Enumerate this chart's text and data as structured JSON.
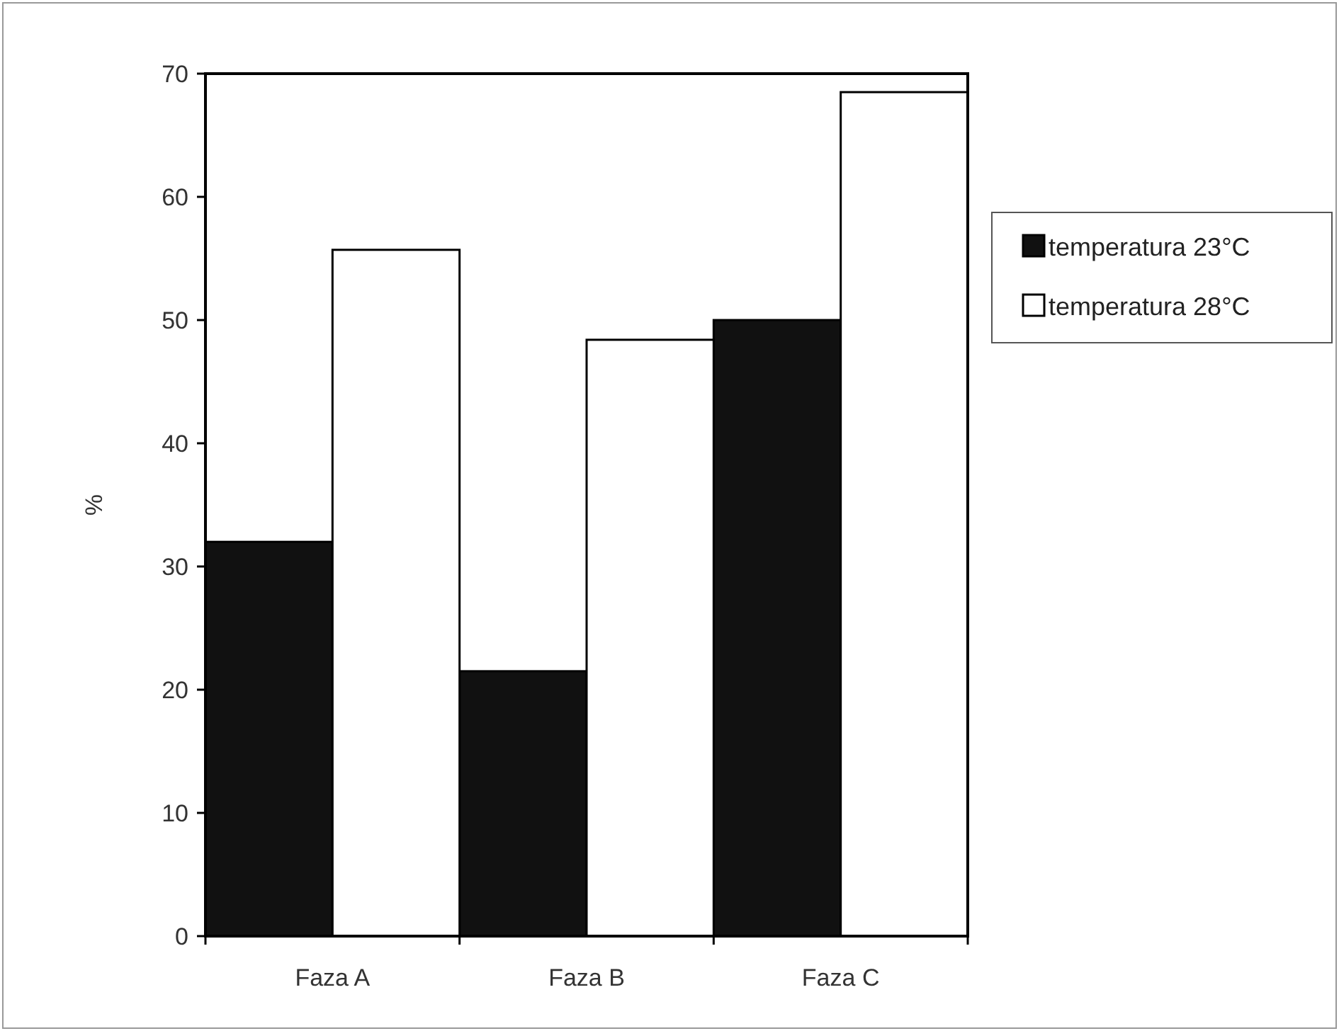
{
  "chart_data": {
    "type": "bar",
    "ylabel": "%",
    "categories": [
      "Faza A",
      "Faza B",
      "Faza C"
    ],
    "series": [
      {
        "name": "temperatura 23°C",
        "color": "#111111",
        "values": [
          32,
          21.5,
          50
        ]
      },
      {
        "name": "temperatura 28°C",
        "color": "#ffffff",
        "values": [
          55.7,
          48.4,
          68.5
        ]
      }
    ],
    "ylim": [
      0,
      70
    ],
    "yticks": [
      0,
      10,
      20,
      30,
      40,
      50,
      60,
      70
    ],
    "grid": false,
    "legend": "right"
  }
}
